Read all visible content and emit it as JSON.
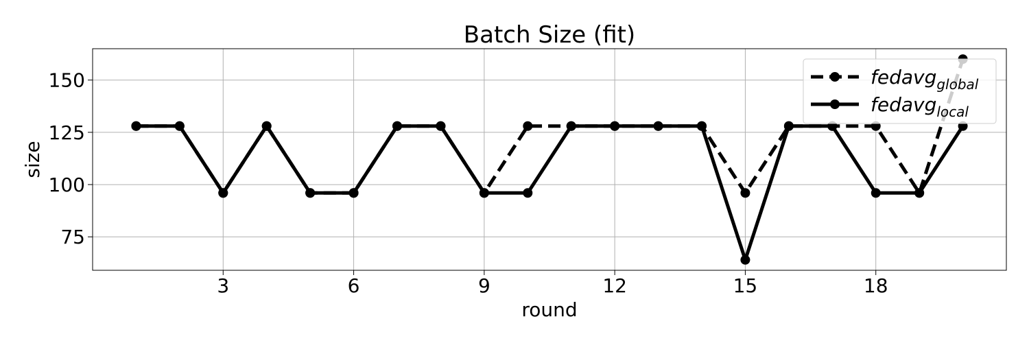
{
  "chart_data": {
    "type": "line",
    "title": "Batch Size (fit)",
    "xlabel": "round",
    "ylabel": "size",
    "xlim": [
      0.0,
      21.0
    ],
    "ylim": [
      59,
      165
    ],
    "xticks": [
      3,
      6,
      9,
      12,
      15,
      18
    ],
    "yticks": [
      75,
      100,
      125,
      150
    ],
    "grid": true,
    "legend_position": "top-right",
    "x": [
      1,
      2,
      3,
      4,
      5,
      6,
      7,
      8,
      9,
      10,
      11,
      12,
      13,
      14,
      15,
      16,
      17,
      18,
      19,
      20
    ],
    "series": [
      {
        "name": "fedavg",
        "name_sub": "global",
        "style": "dashed",
        "color": "#000000",
        "values": [
          128,
          128,
          96,
          128,
          96,
          96,
          128,
          128,
          96,
          128,
          128,
          128,
          128,
          128,
          96,
          128,
          128,
          128,
          96,
          160
        ]
      },
      {
        "name": "fedavg",
        "name_sub": "local",
        "style": "solid",
        "color": "#000000",
        "values": [
          128,
          128,
          96,
          128,
          96,
          96,
          128,
          128,
          96,
          96,
          128,
          128,
          128,
          128,
          64,
          128,
          128,
          96,
          96,
          128
        ]
      }
    ]
  }
}
